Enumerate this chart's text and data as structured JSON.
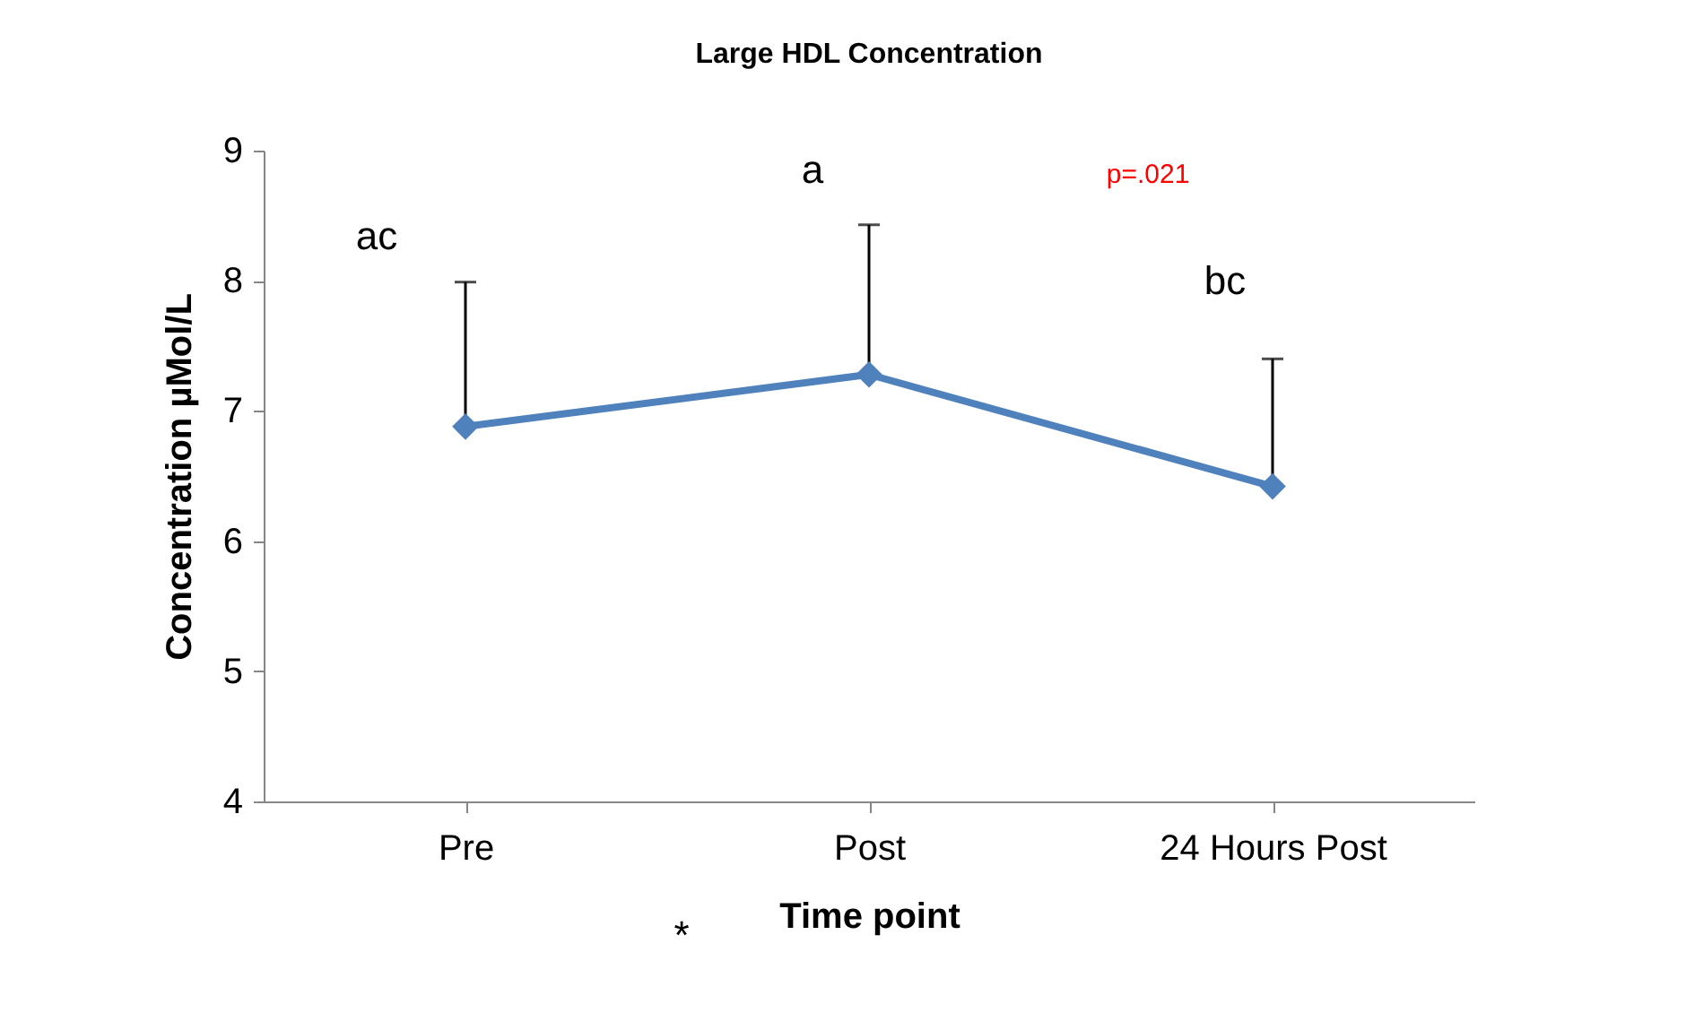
{
  "chart_data": {
    "type": "line",
    "title": "Large HDL Concentration",
    "xlabel": "Time point",
    "ylabel": "Concentration µMol/L",
    "categories": [
      "Pre",
      "Post",
      "24 Hours Post"
    ],
    "series": [
      {
        "color": "#4f81bd",
        "values": [
          6.88,
          7.28,
          6.42
        ],
        "errors": [
          [
            6.88,
            7.99
          ],
          [
            7.28,
            8.43
          ],
          [
            6.42,
            7.4
          ]
        ]
      }
    ],
    "ylim": [
      4,
      9
    ],
    "yticks": [
      4,
      5,
      6,
      7,
      8,
      9
    ],
    "grid": false,
    "marker": "diamond",
    "line_style": "solid",
    "annotations": [
      "ac",
      "a",
      "bc",
      "p=.021",
      "*"
    ]
  }
}
